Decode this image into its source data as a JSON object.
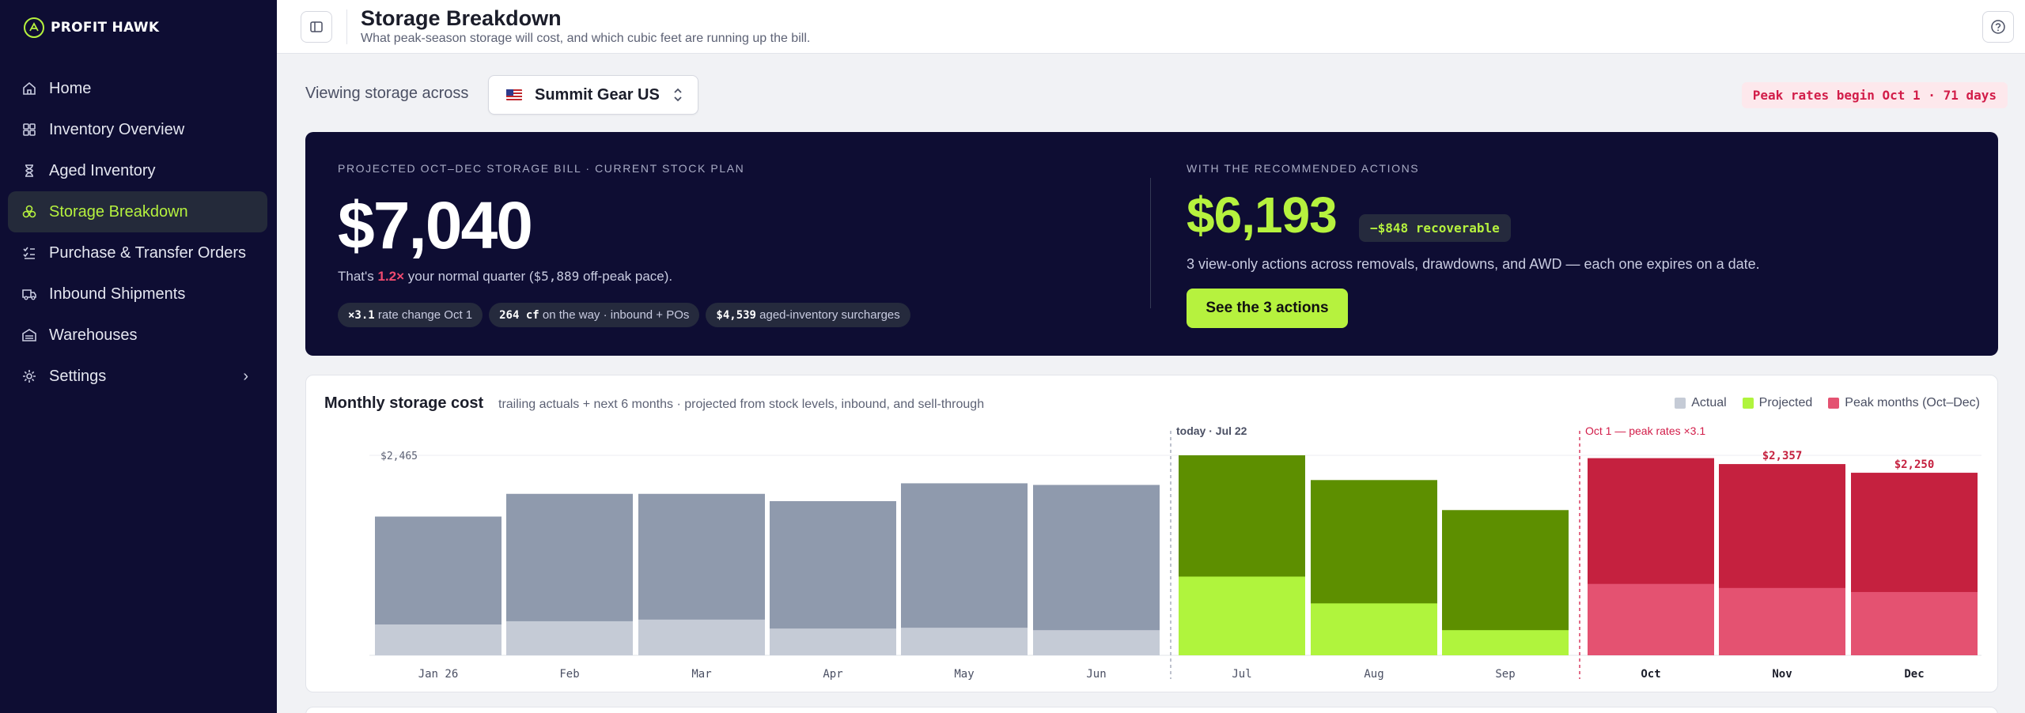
{
  "brand": {
    "name": "PROFIT HAWK"
  },
  "sidebar": {
    "items": [
      {
        "label": "Home",
        "icon": "home-icon"
      },
      {
        "label": "Inventory Overview",
        "icon": "grid-icon"
      },
      {
        "label": "Aged Inventory",
        "icon": "hourglass-icon"
      },
      {
        "label": "Storage Breakdown",
        "icon": "boxes-icon",
        "active": true
      },
      {
        "label": "Purchase & Transfer Orders",
        "icon": "checklist-icon"
      },
      {
        "label": "Inbound Shipments",
        "icon": "truck-icon"
      },
      {
        "label": "Warehouses",
        "icon": "warehouse-icon"
      },
      {
        "label": "Settings",
        "icon": "gear-icon"
      }
    ]
  },
  "header": {
    "title": "Storage Breakdown",
    "subtitle": "What peak-season storage will cost, and which cubic feet are running up the bill."
  },
  "view": {
    "label": "Viewing storage across",
    "store": "Summit Gear US",
    "peak_badge": "Peak rates begin Oct 1 · 71 days"
  },
  "hero": {
    "eyebrow_left": "PROJECTED OCT–DEC STORAGE BILL · CURRENT STOCK PLAN",
    "big_amount": "$7,040",
    "line_prefix": "That's ",
    "line_multiple": "1.2×",
    "line_mid": " your normal quarter (",
    "line_amount": "$5,889",
    "line_suffix": " off-peak pace).",
    "chips": [
      {
        "value": "×3.1",
        "label": " rate change Oct 1"
      },
      {
        "value": "264 cf",
        "label": " on the way · inbound + POs"
      },
      {
        "value": "$4,539",
        "label": " aged-inventory surcharges"
      }
    ],
    "eyebrow_right": "WITH THE RECOMMENDED ACTIONS",
    "rec_amount": "$6,193",
    "rec_pill": "−$848 recoverable",
    "rec_line": "3 view-only actions across removals, drawdowns, and AWD — each one expires on a date.",
    "cta": "See the 3 actions"
  },
  "chart_card": {
    "title": "Monthly storage cost",
    "subtitle": "trailing actuals + next 6 months · projected from stock levels, inbound, and sell-through",
    "legend": [
      "Actual",
      "Projected",
      "Peak months (Oct–Dec)"
    ],
    "today_label": "today · Jul 22",
    "peak_label": "Oct 1 — peak rates ×3.1",
    "max_label": "$2,465"
  },
  "colors": {
    "actual": "#8f9aad",
    "actual_base": "#c5cbd6",
    "projected": "#5d8f00",
    "projected_base": "#b0f43d",
    "peak": "#c5213f",
    "peak_base": "#e45271",
    "accent": "#b6f23e"
  },
  "chart_data": {
    "type": "bar",
    "categories": [
      "Jan 26",
      "Feb",
      "Mar",
      "Apr",
      "May",
      "Jun",
      "Jul",
      "Aug",
      "Sep",
      "Oct",
      "Nov",
      "Dec"
    ],
    "series": [
      {
        "name": "Actual",
        "values": [
          1710,
          1990,
          1990,
          1900,
          2120,
          2100,
          null,
          null,
          null,
          null,
          null,
          null
        ]
      },
      {
        "name": "Projected",
        "values": [
          null,
          null,
          null,
          null,
          null,
          null,
          2465,
          2160,
          1790,
          null,
          null,
          null
        ]
      },
      {
        "name": "Peak months (Oct–Dec)",
        "values": [
          null,
          null,
          null,
          null,
          null,
          null,
          null,
          null,
          null,
          2430,
          2357,
          2250
        ]
      }
    ],
    "base_values": [
      380,
      420,
      440,
      330,
      340,
      310,
      970,
      640,
      310,
      880,
      830,
      780
    ],
    "value_labels": {
      "Nov": "$2,357",
      "Dec": "$2,250"
    },
    "ylim": [
      0,
      2465
    ],
    "title": "Monthly storage cost"
  }
}
